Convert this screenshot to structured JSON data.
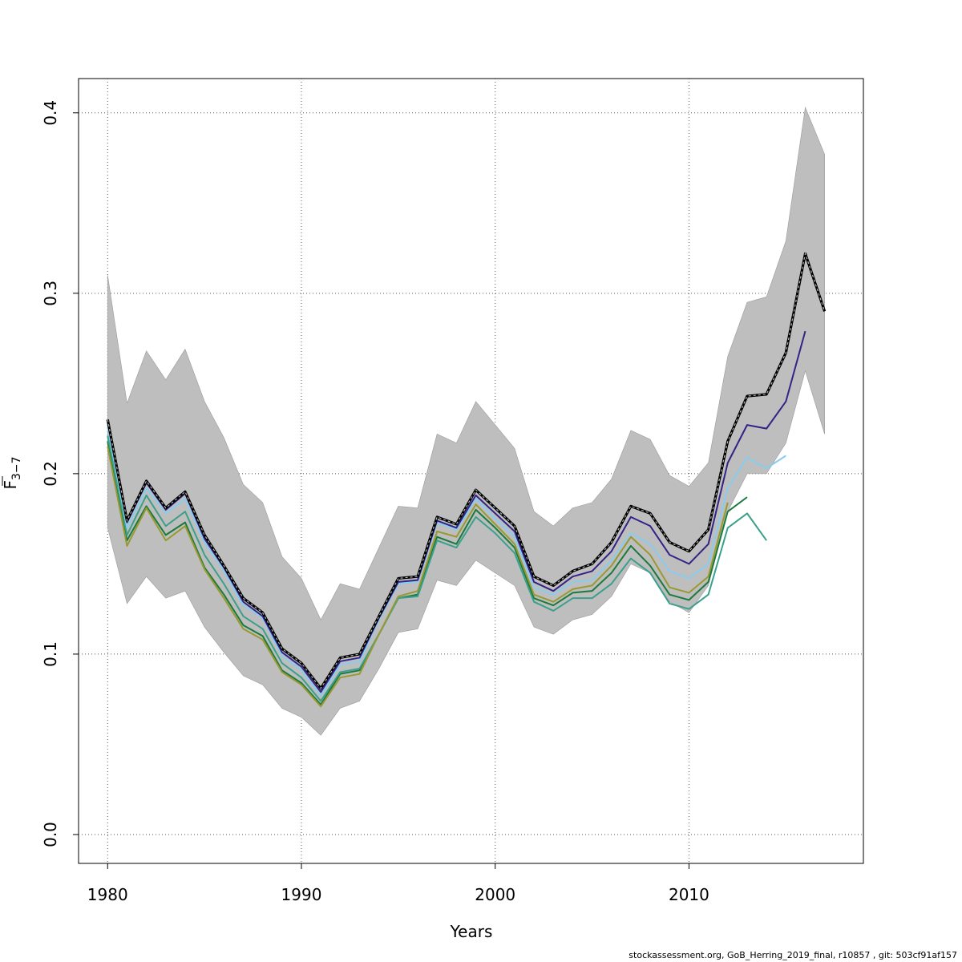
{
  "chart_data": {
    "type": "line",
    "title": "",
    "xlabel": "Years",
    "ylabel": "F",
    "ylabel_sub": "3−7",
    "xlim": [
      1978.5,
      2019.0
    ],
    "ylim": [
      -0.016,
      0.419
    ],
    "x_ticks": [
      1980,
      1990,
      2000,
      2010
    ],
    "y_ticks": [
      0.0,
      0.1,
      0.2,
      0.3,
      0.4
    ],
    "x_tick_labels": [
      "1980",
      "1990",
      "2000",
      "2010"
    ],
    "y_tick_labels": [
      "0.0",
      "0.1",
      "0.2",
      "0.3",
      "0.4"
    ],
    "grid": true,
    "legend": "none",
    "band": {
      "color": "#bebebe",
      "x": [
        1980,
        1981,
        1982,
        1983,
        1984,
        1985,
        1986,
        1987,
        1988,
        1989,
        1990,
        1991,
        1992,
        1993,
        1994,
        1995,
        1996,
        1997,
        1998,
        1999,
        2000,
        2001,
        2002,
        2003,
        2004,
        2005,
        2006,
        2007,
        2008,
        2009,
        2010,
        2011,
        2012,
        2013,
        2014,
        2015,
        2016,
        2017
      ],
      "lower": [
        0.17,
        0.128,
        0.143,
        0.131,
        0.135,
        0.115,
        0.101,
        0.088,
        0.083,
        0.07,
        0.065,
        0.055,
        0.07,
        0.074,
        0.092,
        0.112,
        0.114,
        0.141,
        0.138,
        0.152,
        0.145,
        0.138,
        0.115,
        0.111,
        0.119,
        0.122,
        0.132,
        0.15,
        0.145,
        0.129,
        0.123,
        0.138,
        0.179,
        0.2,
        0.2,
        0.217,
        0.257,
        0.222
      ],
      "upper": [
        0.31,
        0.239,
        0.268,
        0.252,
        0.269,
        0.24,
        0.22,
        0.194,
        0.184,
        0.154,
        0.142,
        0.119,
        0.139,
        0.136,
        0.159,
        0.182,
        0.181,
        0.222,
        0.217,
        0.24,
        0.227,
        0.214,
        0.179,
        0.171,
        0.181,
        0.184,
        0.197,
        0.224,
        0.219,
        0.199,
        0.193,
        0.206,
        0.265,
        0.295,
        0.298,
        0.329,
        0.403,
        0.377
      ]
    },
    "series": [
      {
        "color": "#1a7a3c",
        "x": [
          1980,
          1981,
          1982,
          1983,
          1984,
          1985,
          1986,
          1987,
          1988,
          1989,
          1990,
          1991,
          1992,
          1993,
          1994,
          1995,
          1996,
          1997,
          1998,
          1999,
          2000,
          2001,
          2002,
          2003,
          2004,
          2005,
          2006,
          2007,
          2008,
          2009,
          2010,
          2011,
          2012,
          2013
        ],
        "values": [
          0.218,
          0.163,
          0.182,
          0.166,
          0.173,
          0.148,
          0.133,
          0.116,
          0.11,
          0.091,
          0.084,
          0.072,
          0.089,
          0.091,
          0.111,
          0.131,
          0.133,
          0.165,
          0.161,
          0.18,
          0.17,
          0.159,
          0.131,
          0.127,
          0.134,
          0.135,
          0.145,
          0.16,
          0.149,
          0.133,
          0.13,
          0.14,
          0.179,
          0.187
        ]
      },
      {
        "color": "#3aa08a",
        "x": [
          1980,
          1981,
          1982,
          1983,
          1984,
          1985,
          1986,
          1987,
          1988,
          1989,
          1990,
          1991,
          1992,
          1993,
          1994,
          1995,
          1996,
          1997,
          1998,
          1999,
          2000,
          2001,
          2002,
          2003,
          2004,
          2005,
          2006,
          2007,
          2008,
          2009,
          2010,
          2011,
          2012,
          2013,
          2014
        ],
        "values": [
          0.221,
          0.166,
          0.188,
          0.171,
          0.179,
          0.155,
          0.139,
          0.121,
          0.114,
          0.095,
          0.087,
          0.074,
          0.09,
          0.092,
          0.111,
          0.131,
          0.132,
          0.163,
          0.159,
          0.176,
          0.167,
          0.156,
          0.129,
          0.124,
          0.131,
          0.131,
          0.139,
          0.153,
          0.145,
          0.128,
          0.125,
          0.133,
          0.17,
          0.178,
          0.163
        ]
      },
      {
        "color": "#999933",
        "x": [
          1980,
          1981,
          1982,
          1983,
          1984,
          1985,
          1986,
          1987,
          1988,
          1989,
          1990,
          1991,
          1992,
          1993,
          1994,
          1995,
          1996,
          1997,
          1998,
          1999,
          2000,
          2001,
          2002,
          2003,
          2004,
          2005,
          2006,
          2007,
          2008,
          2009,
          2010,
          2011,
          2012
        ],
        "values": [
          0.215,
          0.16,
          0.181,
          0.163,
          0.171,
          0.147,
          0.131,
          0.114,
          0.108,
          0.09,
          0.083,
          0.071,
          0.087,
          0.089,
          0.111,
          0.132,
          0.135,
          0.168,
          0.165,
          0.183,
          0.172,
          0.161,
          0.133,
          0.129,
          0.136,
          0.138,
          0.149,
          0.165,
          0.155,
          0.137,
          0.134,
          0.143,
          0.184
        ]
      },
      {
        "color": "#88ccee",
        "x": [
          1980,
          1981,
          1982,
          1983,
          1984,
          1985,
          1986,
          1987,
          1988,
          1989,
          1990,
          1991,
          1992,
          1993,
          1994,
          1995,
          1996,
          1997,
          1998,
          1999,
          2000,
          2001,
          2002,
          2003,
          2004,
          2005,
          2006,
          2007,
          2008,
          2009,
          2010,
          2011,
          2012,
          2013,
          2014,
          2015
        ],
        "values": [
          0.226,
          0.17,
          0.192,
          0.178,
          0.186,
          0.162,
          0.146,
          0.127,
          0.12,
          0.099,
          0.091,
          0.077,
          0.094,
          0.096,
          0.119,
          0.139,
          0.14,
          0.173,
          0.169,
          0.186,
          0.175,
          0.165,
          0.137,
          0.133,
          0.14,
          0.141,
          0.152,
          0.167,
          0.161,
          0.146,
          0.142,
          0.15,
          0.192,
          0.209,
          0.203,
          0.21
        ]
      },
      {
        "color": "#332288",
        "x": [
          1980,
          1981,
          1982,
          1983,
          1984,
          1985,
          1986,
          1987,
          1988,
          1989,
          1990,
          1991,
          1992,
          1993,
          1994,
          1995,
          1996,
          1997,
          1998,
          1999,
          2000,
          2001,
          2002,
          2003,
          2004,
          2005,
          2006,
          2007,
          2008,
          2009,
          2010,
          2011,
          2012,
          2013,
          2014,
          2015,
          2016
        ],
        "values": [
          0.23,
          0.173,
          0.195,
          0.18,
          0.189,
          0.164,
          0.148,
          0.129,
          0.121,
          0.101,
          0.093,
          0.079,
          0.096,
          0.098,
          0.12,
          0.14,
          0.141,
          0.174,
          0.17,
          0.188,
          0.178,
          0.168,
          0.14,
          0.135,
          0.143,
          0.146,
          0.157,
          0.176,
          0.171,
          0.155,
          0.15,
          0.161,
          0.206,
          0.227,
          0.225,
          0.24,
          0.279
        ]
      },
      {
        "color": "#000000",
        "dashed_overlay": true,
        "x": [
          1980,
          1981,
          1982,
          1983,
          1984,
          1985,
          1986,
          1987,
          1988,
          1989,
          1990,
          1991,
          1992,
          1993,
          1994,
          1995,
          1996,
          1997,
          1998,
          1999,
          2000,
          2001,
          2002,
          2003,
          2004,
          2005,
          2006,
          2007,
          2008,
          2009,
          2010,
          2011,
          2012,
          2013,
          2014,
          2015,
          2016,
          2017
        ],
        "values": [
          0.23,
          0.174,
          0.196,
          0.181,
          0.19,
          0.166,
          0.149,
          0.131,
          0.123,
          0.103,
          0.095,
          0.081,
          0.098,
          0.1,
          0.121,
          0.142,
          0.143,
          0.176,
          0.172,
          0.191,
          0.181,
          0.171,
          0.143,
          0.138,
          0.146,
          0.15,
          0.162,
          0.182,
          0.178,
          0.162,
          0.157,
          0.169,
          0.218,
          0.243,
          0.244,
          0.267,
          0.322,
          0.29
        ]
      }
    ]
  },
  "footer": "stockassessment.org, GoB_Herring_2019_final, r10857 , git: 503cf91af157"
}
